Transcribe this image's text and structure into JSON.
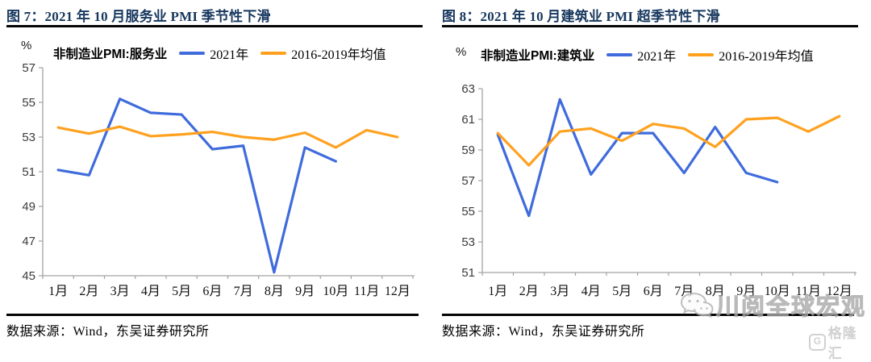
{
  "panels": [
    {
      "title": "图 7：2021 年 10 月服务业 PMI 季节性下滑",
      "source": "数据来源：Wind，东吴证券研究所"
    },
    {
      "title": "图 8：2021 年 10 月建筑业 PMI 超季节性下滑",
      "source": "数据来源：Wind，东吴证券研究所"
    }
  ],
  "watermarks": {
    "wechat_text": "川阅全球宏观",
    "gelonghui_badge": "G",
    "gelonghui_text": "格隆汇"
  },
  "chart_data": [
    {
      "type": "line",
      "legend_title": "非制造业PMI:服务业",
      "unit": "%",
      "categories": [
        "1月",
        "2月",
        "3月",
        "4月",
        "5月",
        "6月",
        "7月",
        "8月",
        "9月",
        "10月",
        "11月",
        "12月"
      ],
      "series": [
        {
          "name": "2021年",
          "color": "#3f6bdc",
          "values": [
            51.1,
            50.8,
            55.2,
            54.4,
            54.3,
            52.3,
            52.5,
            45.2,
            52.4,
            51.6,
            null,
            null
          ]
        },
        {
          "name": "2016-2019年均值",
          "color": "#ffa11f",
          "values": [
            53.55,
            53.2,
            53.6,
            53.05,
            53.15,
            53.3,
            53.0,
            52.85,
            53.25,
            52.4,
            53.4,
            53.0
          ]
        }
      ],
      "ylim": [
        45,
        57
      ],
      "ytick_step": 2,
      "grid": false,
      "legend_position": "top"
    },
    {
      "type": "line",
      "legend_title": "非制造业PMI:建筑业",
      "unit": "%",
      "categories": [
        "1月",
        "2月",
        "3月",
        "4月",
        "5月",
        "6月",
        "7月",
        "8月",
        "9月",
        "10月",
        "11月",
        "12月"
      ],
      "series": [
        {
          "name": "2021年",
          "color": "#3f6bdc",
          "values": [
            60.0,
            54.7,
            62.3,
            57.4,
            60.1,
            60.1,
            57.5,
            60.5,
            57.5,
            56.9,
            null,
            null
          ]
        },
        {
          "name": "2016-2019年均值",
          "color": "#ffa11f",
          "values": [
            60.1,
            58.0,
            60.2,
            60.4,
            59.6,
            60.7,
            60.4,
            59.2,
            61.0,
            61.1,
            60.2,
            61.2
          ]
        }
      ],
      "ylim": [
        51,
        63
      ],
      "ytick_step": 2,
      "grid": false,
      "legend_position": "top"
    }
  ]
}
